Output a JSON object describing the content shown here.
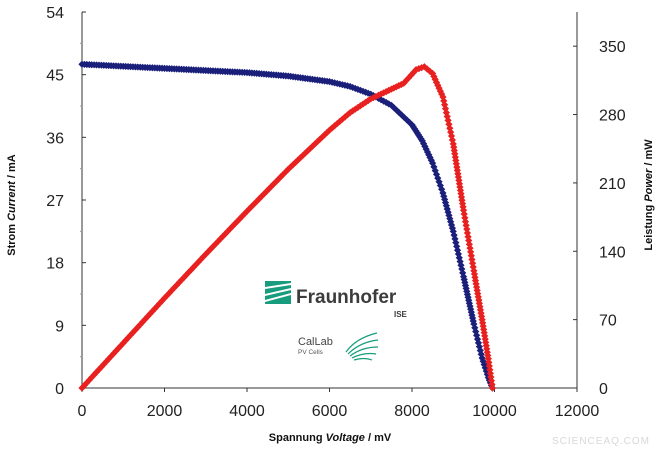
{
  "chart_data": {
    "type": "scatter",
    "xlabel_parts": [
      "Spannung ",
      "Voltage",
      " / mV"
    ],
    "ylabel_parts": [
      "Strom ",
      "Current",
      " / mA"
    ],
    "y2label_parts": [
      "Leistung ",
      "Power",
      " / mW"
    ],
    "xlim": [
      0,
      12000
    ],
    "ylim": [
      0,
      54
    ],
    "y2lim": [
      0,
      385
    ],
    "x_ticks": [
      0,
      2000,
      4000,
      6000,
      8000,
      10000,
      12000
    ],
    "y_ticks": [
      0,
      9,
      18,
      27,
      36,
      45,
      54
    ],
    "y2_ticks": [
      0,
      70,
      140,
      210,
      280,
      350
    ],
    "grid": false,
    "series": [
      {
        "axis": "left",
        "color": "#1a1f7a",
        "x": [
          0,
          1000,
          2000,
          3000,
          4000,
          5000,
          6000,
          6500,
          7000,
          7500,
          8000,
          8250,
          8500,
          8750,
          9000,
          9250,
          9500,
          9700,
          9850,
          9950
        ],
        "values": [
          46.5,
          46.2,
          45.9,
          45.6,
          45.3,
          44.8,
          44.0,
          43.3,
          42.2,
          40.6,
          37.8,
          35.5,
          32.3,
          28.0,
          22.5,
          16.0,
          9.2,
          4.3,
          1.5,
          0.0
        ]
      },
      {
        "axis": "right",
        "color": "#e8201f",
        "x": [
          0,
          1000,
          2000,
          3000,
          4000,
          5000,
          6000,
          6500,
          7000,
          7500,
          7800,
          8100,
          8300,
          8500,
          8750,
          9000,
          9250,
          9500,
          9700,
          9850,
          9950
        ],
        "values": [
          0,
          46,
          92,
          137,
          181,
          224,
          264,
          282,
          296,
          306,
          312,
          326,
          329,
          322,
          298,
          250,
          182,
          120,
          70,
          30,
          0
        ]
      }
    ]
  },
  "logo": {
    "org_name": "Fraunhofer",
    "org_unit": "ISE",
    "lab_name": "CalLab",
    "lab_sub": "PV Cells",
    "color": "#179c7d"
  },
  "watermark": "SCIENCEAQ.COM"
}
